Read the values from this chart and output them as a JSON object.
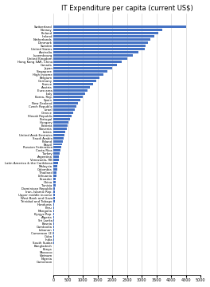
{
  "title": "IT Expenditure per capita (current US$)",
  "title_fontsize": 6.0,
  "bar_color": "#4472C4",
  "background_color": "#FFFFFF",
  "xlim": [
    0,
    5000
  ],
  "xticks": [
    0,
    500,
    1000,
    1500,
    2000,
    2500,
    3000,
    3500,
    4000,
    4500,
    5000
  ],
  "labels": [
    "Cameroon",
    "Nigeria",
    "Vietnam",
    "Morocco",
    "Kenya",
    "Bangladesh",
    "South Sudan",
    "India",
    "Cuba",
    "Cameroon (2)",
    "Lebanon",
    "Cambodia",
    "Bosnia",
    "Sri Lanka",
    "Algeria",
    "Kyrgyz Rep.",
    "Mongolia",
    "Peru",
    "Honduras",
    "Trinidad and Tobago",
    "West Bank and Gaza",
    "Upper middle income",
    "Iran, Islamic Rep.",
    "Dominican Republic",
    "Tunisia",
    "China",
    "Ecuador",
    "Lithuania",
    "Thailand",
    "Colombia",
    "Malaysia",
    "Latin America & the Caribbean",
    "Venezuela, RB",
    "Argentina",
    "Turkey",
    "Costa Rica",
    "Russian Federation",
    "Brazil",
    "Poland",
    "Saudi Arabia",
    "United Arab Emirates",
    "Latvia",
    "Slovenia",
    "Estonia",
    "Hungary",
    "Portugal",
    "Slovak Republic",
    "Greece",
    "Israel",
    "Czech Republic",
    "New Zealand",
    "Spain",
    "Korea, Rep.",
    "Italy",
    "Euro area",
    "Austria",
    "France",
    "Germany",
    "Belgium",
    "High income",
    "Singapore",
    "Japan",
    "Canada",
    "Hong Kong SAR, China",
    "United Kingdom",
    "Luxembourg",
    "Australia",
    "United States",
    "Sweden",
    "Denmark",
    "Netherlands",
    "Ireland",
    "Finland",
    "Norway",
    "Switzerland"
  ],
  "values": [
    3,
    4,
    5,
    6,
    7,
    8,
    9,
    10,
    11,
    12,
    13,
    14,
    16,
    18,
    20,
    22,
    25,
    28,
    32,
    36,
    42,
    48,
    55,
    62,
    70,
    78,
    88,
    100,
    112,
    125,
    140,
    155,
    172,
    190,
    210,
    230,
    255,
    280,
    310,
    340,
    375,
    410,
    445,
    480,
    520,
    565,
    610,
    660,
    715,
    775,
    840,
    910,
    985,
    1065,
    1150,
    1240,
    1340,
    1450,
    1570,
    1700,
    1840,
    1990,
    2150,
    2320,
    2500,
    2690,
    2890,
    3100,
    3120,
    3200,
    3300,
    3420,
    3560,
    3700,
    4520
  ]
}
